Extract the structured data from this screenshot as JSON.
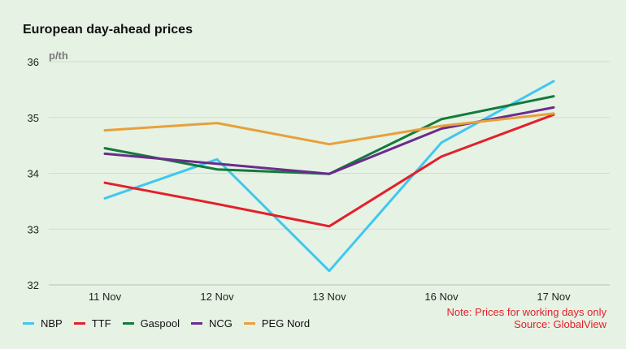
{
  "chart_data": {
    "type": "line",
    "title": "European day-ahead prices",
    "ylabel": "p/th",
    "categories": [
      "11 Nov",
      "12 Nov",
      "13 Nov",
      "16 Nov",
      "17 Nov"
    ],
    "ylim": [
      32,
      36
    ],
    "yticks": [
      32,
      33,
      34,
      35,
      36
    ],
    "grid": true,
    "legend_position": "bottom-left",
    "series": [
      {
        "name": "NBP",
        "color": "#3ec8f0",
        "values": [
          33.55,
          34.25,
          32.25,
          34.55,
          35.65
        ]
      },
      {
        "name": "TTF",
        "color": "#e3202a",
        "values": [
          33.83,
          33.45,
          33.05,
          34.3,
          35.05
        ]
      },
      {
        "name": "Gaspool",
        "color": "#137a3c",
        "values": [
          34.45,
          34.07,
          33.99,
          34.97,
          35.38
        ]
      },
      {
        "name": "NCG",
        "color": "#6a2c8c",
        "values": [
          34.35,
          34.17,
          33.99,
          34.8,
          35.18
        ]
      },
      {
        "name": "PEG Nord",
        "color": "#e8a03a",
        "values": [
          34.77,
          34.9,
          34.52,
          34.85,
          35.07
        ]
      }
    ]
  },
  "note": {
    "line1": "Note: Prices for working days only",
    "line2": "Source: GlobalView"
  }
}
